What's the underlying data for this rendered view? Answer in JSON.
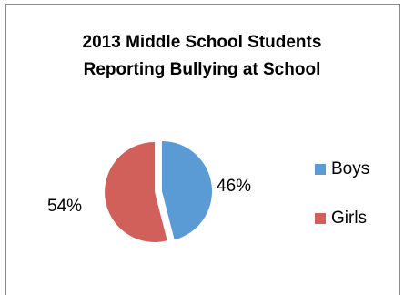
{
  "chart_data": {
    "type": "pie",
    "title": [
      "2013 Middle School Students",
      "Reporting Bullying at School"
    ],
    "categories": [
      "Boys",
      "Girls"
    ],
    "values": [
      46,
      54
    ],
    "data_labels": [
      "46%",
      "54%"
    ],
    "colors": [
      "#5b9bd5",
      "#d1605a"
    ],
    "exploded": "Girls",
    "legend_position": "right"
  }
}
